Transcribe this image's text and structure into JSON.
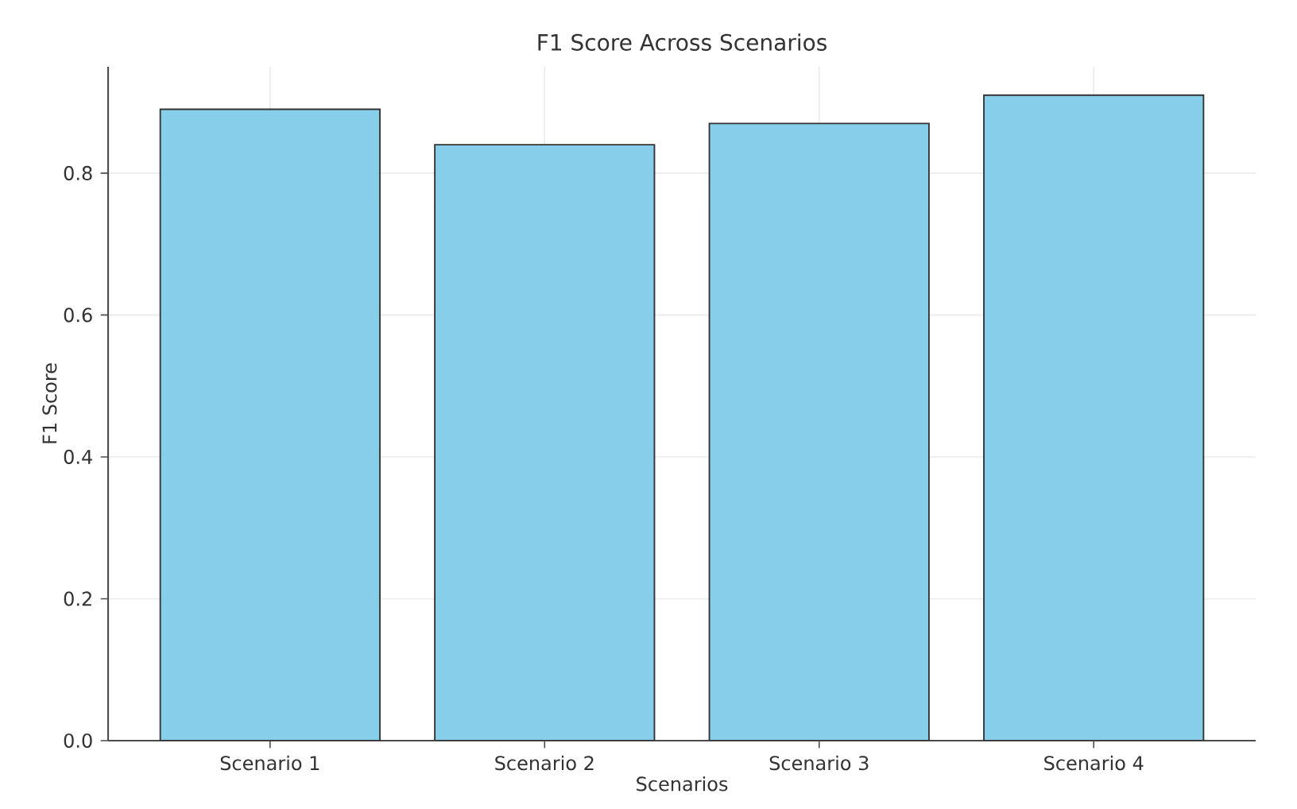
{
  "chart_data": {
    "type": "bar",
    "title": "F1 Score Across Scenarios",
    "xlabel": "Scenarios",
    "ylabel": "F1 Score",
    "categories": [
      "Scenario 1",
      "Scenario 2",
      "Scenario 3",
      "Scenario 4"
    ],
    "values": [
      0.89,
      0.84,
      0.87,
      0.91
    ],
    "color": "#87ceeb",
    "ylim": [
      0,
      0.95
    ],
    "yticks": [
      {
        "value": 0,
        "label": "0.0"
      },
      0.2,
      0.4,
      0.6,
      0.8
    ],
    "grid": true
  }
}
